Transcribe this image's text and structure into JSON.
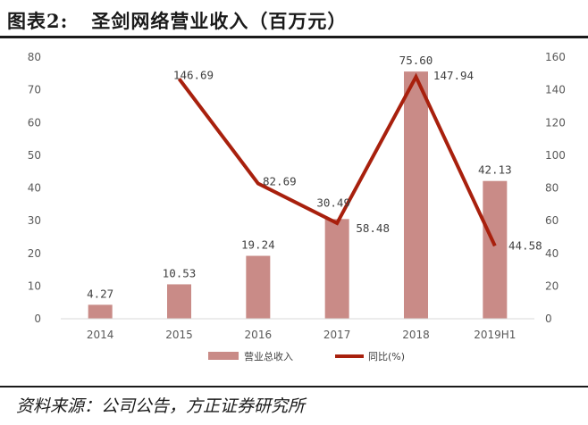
{
  "header": {
    "figure_label": "图表2:",
    "title": "圣剑网络营业收入（百万元）"
  },
  "footer": {
    "source": "资料来源：公司公告，方正证券研究所"
  },
  "colors": {
    "bar": "#c98b87",
    "line": "#a8200d",
    "axis": "#d9d9d9"
  },
  "chart_data": {
    "type": "bar",
    "categories": [
      "2014",
      "2015",
      "2016",
      "2017",
      "2018",
      "2019H1"
    ],
    "series": [
      {
        "name": "营业总收入",
        "type": "bar",
        "axis": "left",
        "values": [
          4.27,
          10.53,
          19.24,
          30.49,
          75.6,
          42.13
        ],
        "labels": [
          "4.27",
          "10.53",
          "19.24",
          "30.49",
          "75.60",
          "42.13"
        ]
      },
      {
        "name": "同比(%)",
        "type": "line",
        "axis": "right",
        "values": [
          null,
          146.69,
          82.69,
          58.48,
          147.94,
          44.58
        ],
        "labels": [
          null,
          "146.69",
          "82.69",
          "58.48",
          "147.94",
          "44.58"
        ]
      }
    ],
    "y_left": {
      "min": 0,
      "max": 80,
      "ticks": [
        0,
        10,
        20,
        30,
        40,
        50,
        60,
        70,
        80
      ]
    },
    "y_right": {
      "min": 0,
      "max": 160,
      "ticks": [
        0,
        20,
        40,
        60,
        80,
        100,
        120,
        140,
        160
      ]
    },
    "grid": false,
    "legend_position": "bottom"
  }
}
